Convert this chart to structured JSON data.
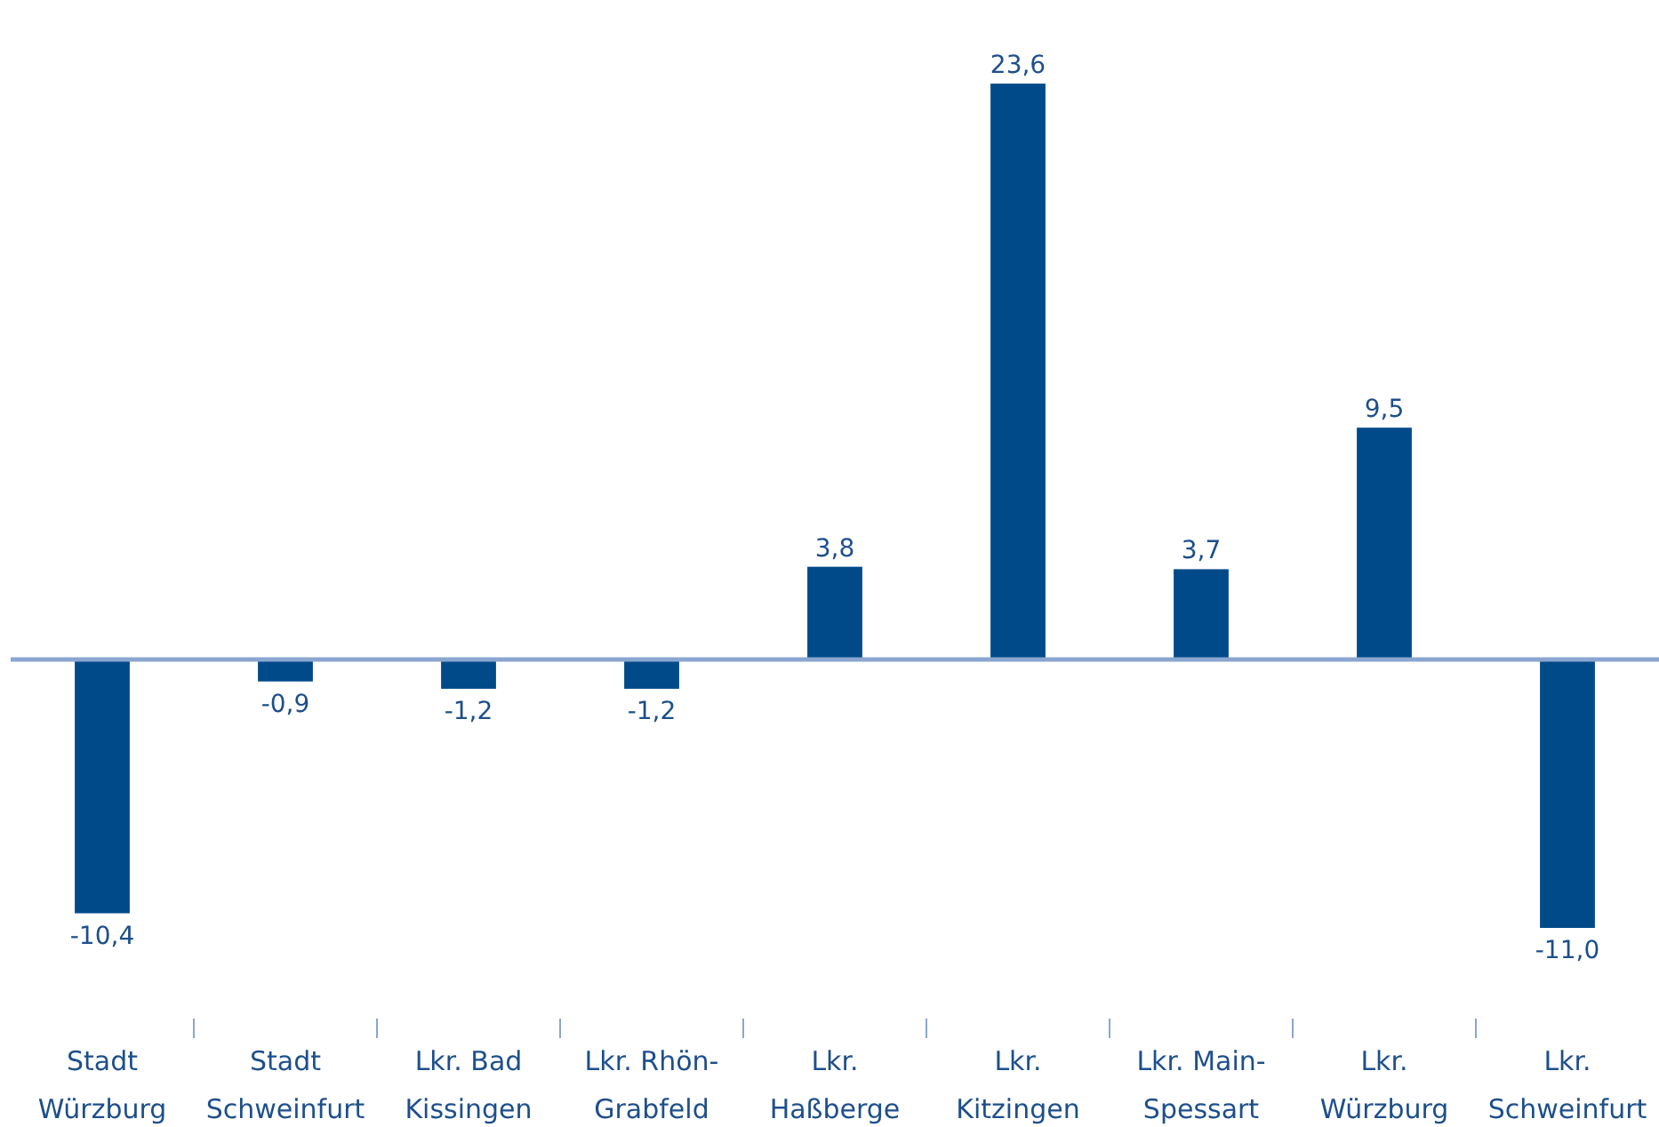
{
  "chart_data": {
    "type": "bar",
    "categories": [
      "Stadt Würzburg",
      "Stadt Schweinfurt",
      "Lkr. Bad Kissingen",
      "Lkr. Rhön-Grabfeld",
      "Lkr. Haßberge",
      "Lkr. Kitzingen",
      "Lkr. Main-Spessart",
      "Lkr. Würzburg",
      "Lkr. Schweinfurt"
    ],
    "values": [
      -10.4,
      -0.9,
      -1.2,
      -1.2,
      3.8,
      23.6,
      3.7,
      9.5,
      -11.0
    ],
    "value_labels": [
      "-10,4",
      "-0,9",
      "-1,2",
      "-1,2",
      "3,8",
      "23,6",
      "3,7",
      "9,5",
      "-11,0"
    ],
    "color": "#004a8a",
    "ref_lines": [
      {
        "axis": "y",
        "value": 0,
        "color": "#8aa6d0"
      }
    ]
  }
}
